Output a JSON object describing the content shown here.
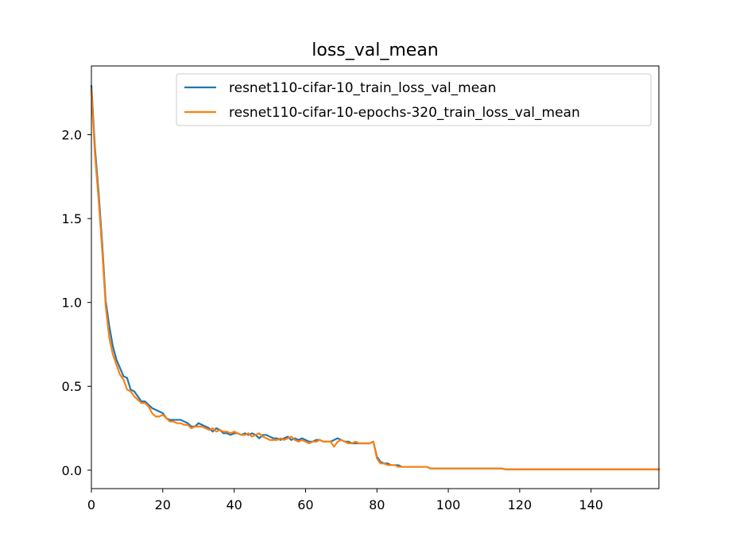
{
  "chart_data": {
    "type": "line",
    "title": "loss_val_mean",
    "xlabel": "",
    "ylabel": "",
    "xlim": [
      0,
      159
    ],
    "ylim": [
      -0.11,
      2.41
    ],
    "xticks": [
      0,
      20,
      40,
      60,
      80,
      100,
      120,
      140
    ],
    "xtick_labels": [
      "0",
      "20",
      "40",
      "60",
      "80",
      "100",
      "120",
      "140"
    ],
    "yticks": [
      0.0,
      0.5,
      1.0,
      1.5,
      2.0
    ],
    "ytick_labels": [
      "0.0",
      "0.5",
      "1.0",
      "1.5",
      "2.0"
    ],
    "grid": false,
    "legend_position": "top-right",
    "series": [
      {
        "name": "resnet110-cifar-10_train_loss_val_mean",
        "color": "#1f77b4",
        "values": [
          2.29,
          1.92,
          1.66,
          1.36,
          1.01,
          0.86,
          0.74,
          0.66,
          0.61,
          0.56,
          0.55,
          0.48,
          0.47,
          0.44,
          0.41,
          0.41,
          0.39,
          0.37,
          0.36,
          0.35,
          0.34,
          0.31,
          0.3,
          0.3,
          0.3,
          0.3,
          0.29,
          0.28,
          0.26,
          0.26,
          0.28,
          0.27,
          0.26,
          0.25,
          0.23,
          0.25,
          0.24,
          0.22,
          0.22,
          0.21,
          0.22,
          0.22,
          0.21,
          0.22,
          0.21,
          0.22,
          0.21,
          0.19,
          0.21,
          0.21,
          0.2,
          0.19,
          0.19,
          0.18,
          0.19,
          0.2,
          0.18,
          0.19,
          0.18,
          0.19,
          0.18,
          0.17,
          0.17,
          0.18,
          0.18,
          0.17,
          0.17,
          0.17,
          0.18,
          0.19,
          0.18,
          0.17,
          0.17,
          0.16,
          0.16,
          0.16,
          0.16,
          0.16,
          0.16,
          0.17,
          0.08,
          0.05,
          0.04,
          0.04,
          0.03,
          0.03,
          0.03,
          0.02,
          0.02,
          0.02,
          0.02,
          0.02,
          0.02,
          0.02,
          0.02,
          0.01,
          0.01,
          0.01,
          0.01,
          0.01,
          0.01,
          0.01,
          0.01,
          0.01,
          0.01,
          0.01,
          0.01,
          0.01,
          0.01,
          0.01,
          0.01,
          0.01,
          0.01,
          0.01,
          0.01,
          0.01,
          0.005,
          0.005,
          0.005,
          0.005,
          0.005,
          0.005,
          0.005,
          0.005,
          0.005,
          0.005,
          0.005,
          0.005,
          0.005,
          0.005,
          0.005,
          0.005,
          0.005,
          0.005,
          0.005,
          0.005,
          0.005,
          0.005,
          0.005,
          0.005,
          0.005,
          0.005,
          0.005,
          0.005,
          0.005,
          0.005,
          0.005,
          0.005,
          0.005,
          0.005,
          0.005,
          0.005,
          0.005,
          0.005,
          0.005,
          0.005,
          0.005,
          0.005,
          0.005,
          0.005
        ]
      },
      {
        "name": "resnet110-cifar-10-epochs-320_train_loss_val_mean",
        "color": "#ff7f0e",
        "values": [
          2.27,
          1.88,
          1.62,
          1.32,
          0.98,
          0.79,
          0.69,
          0.63,
          0.57,
          0.54,
          0.48,
          0.47,
          0.44,
          0.42,
          0.4,
          0.4,
          0.38,
          0.34,
          0.32,
          0.32,
          0.33,
          0.31,
          0.29,
          0.29,
          0.28,
          0.28,
          0.27,
          0.27,
          0.25,
          0.26,
          0.26,
          0.26,
          0.25,
          0.24,
          0.25,
          0.23,
          0.24,
          0.23,
          0.23,
          0.22,
          0.23,
          0.22,
          0.21,
          0.21,
          0.22,
          0.2,
          0.21,
          0.22,
          0.2,
          0.19,
          0.18,
          0.18,
          0.18,
          0.19,
          0.18,
          0.19,
          0.2,
          0.18,
          0.17,
          0.18,
          0.17,
          0.16,
          0.17,
          0.17,
          0.18,
          0.17,
          0.17,
          0.17,
          0.14,
          0.17,
          0.18,
          0.17,
          0.16,
          0.16,
          0.17,
          0.16,
          0.16,
          0.16,
          0.16,
          0.17,
          0.07,
          0.04,
          0.04,
          0.03,
          0.03,
          0.03,
          0.02,
          0.02,
          0.02,
          0.02,
          0.02,
          0.02,
          0.02,
          0.02,
          0.02,
          0.01,
          0.01,
          0.01,
          0.01,
          0.01,
          0.01,
          0.01,
          0.01,
          0.01,
          0.01,
          0.01,
          0.01,
          0.01,
          0.01,
          0.01,
          0.01,
          0.01,
          0.01,
          0.01,
          0.01,
          0.01,
          0.005,
          0.005,
          0.005,
          0.005,
          0.005,
          0.005,
          0.005,
          0.005,
          0.005,
          0.005,
          0.005,
          0.005,
          0.005,
          0.005,
          0.005,
          0.005,
          0.005,
          0.005,
          0.005,
          0.005,
          0.005,
          0.005,
          0.005,
          0.005,
          0.005,
          0.005,
          0.005,
          0.005,
          0.005,
          0.005,
          0.005,
          0.005,
          0.005,
          0.005,
          0.005,
          0.005,
          0.005,
          0.005,
          0.005,
          0.005,
          0.005,
          0.005,
          0.005,
          0.005
        ]
      }
    ]
  }
}
